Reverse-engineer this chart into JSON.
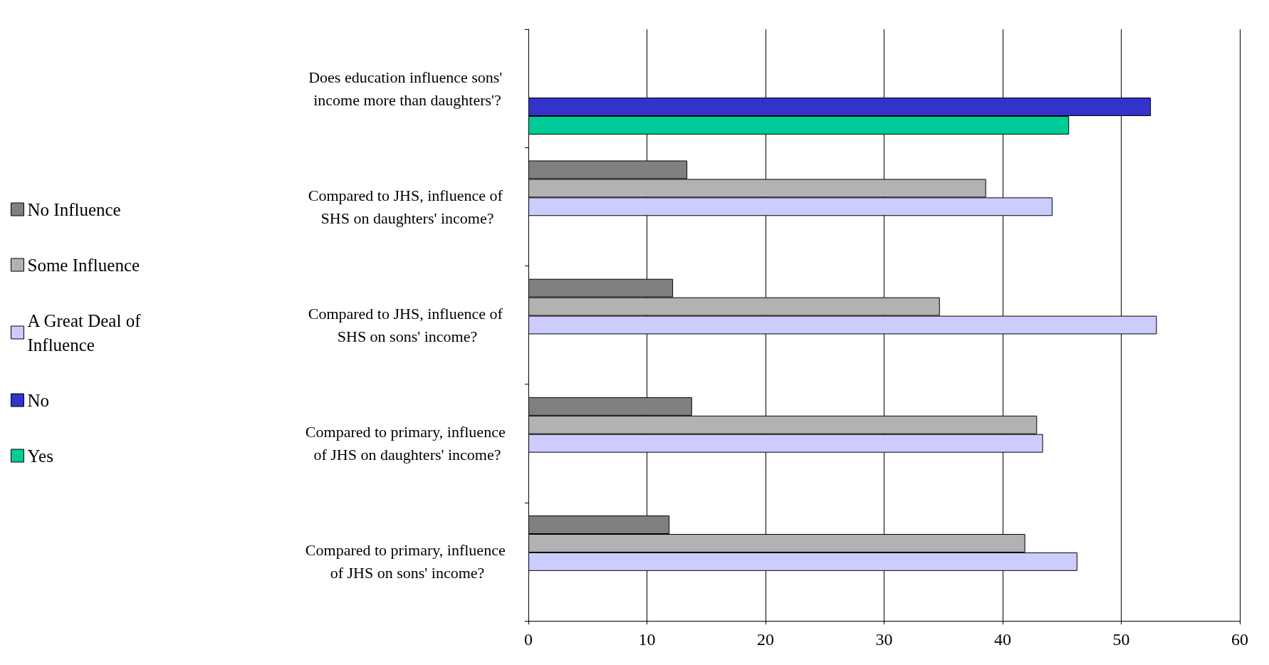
{
  "chart_data": {
    "type": "bar",
    "orientation": "horizontal",
    "categories": [
      "Does education influence sons' income more than daughters'?",
      "Compared to JHS, influence of SHS on daughters' income?",
      "Compared to JHS, influence of SHS on sons' income?",
      "Compared to primary, influence of JHS on daughters' income?",
      "Compared to primary, influence of JHS on sons' income?"
    ],
    "series": [
      {
        "name": "No Influence",
        "color": "#808080",
        "values": [
          null,
          13.4,
          12.2,
          13.8,
          11.9
        ]
      },
      {
        "name": "Some Influence",
        "color": "#b2b2b2",
        "values": [
          null,
          38.6,
          34.7,
          42.9,
          41.9
        ]
      },
      {
        "name": "A Great Deal of Influence",
        "color": "#ccccff",
        "values": [
          null,
          44.2,
          53.0,
          43.4,
          46.3
        ]
      },
      {
        "name": "No",
        "color": "#3333cc",
        "values": [
          52.5,
          null,
          null,
          null,
          null
        ]
      },
      {
        "name": "Yes",
        "color": "#00cc99",
        "values": [
          45.6,
          null,
          null,
          null,
          null
        ]
      }
    ],
    "xlim": [
      0,
      60
    ],
    "xticks": [
      0,
      10,
      20,
      30,
      40,
      50,
      60
    ],
    "grid": "x",
    "legend": "left"
  }
}
